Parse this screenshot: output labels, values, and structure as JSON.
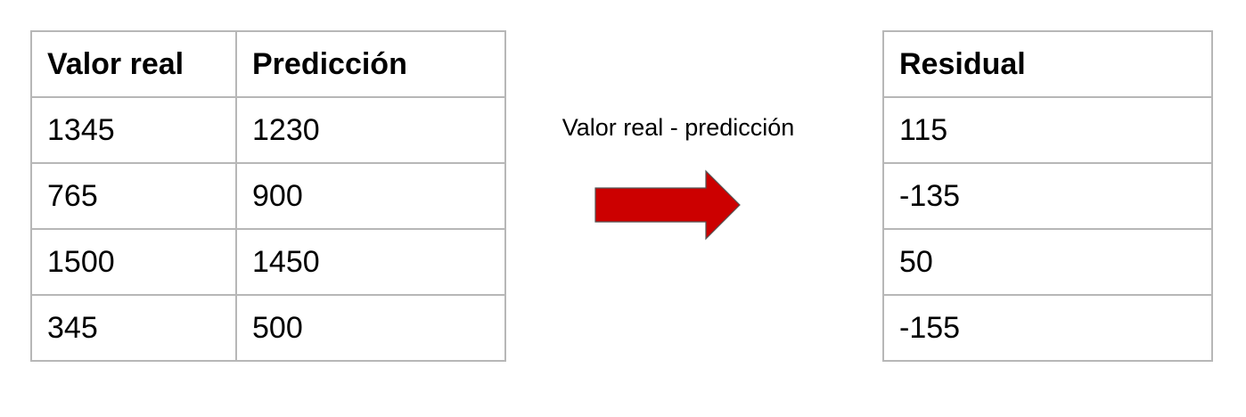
{
  "left_table": {
    "headers": [
      "Valor real",
      "Predicción"
    ],
    "rows": [
      [
        "1345",
        "1230"
      ],
      [
        "765",
        "900"
      ],
      [
        "1500",
        "1450"
      ],
      [
        "345",
        "500"
      ]
    ]
  },
  "operation": {
    "label": "Valor real - predicción",
    "arrow_color": "#cc0000",
    "arrow_icon": "right-arrow-icon"
  },
  "right_table": {
    "headers": [
      "Residual"
    ],
    "rows": [
      [
        "115"
      ],
      [
        "-135"
      ],
      [
        "50"
      ],
      [
        "-155"
      ]
    ]
  }
}
